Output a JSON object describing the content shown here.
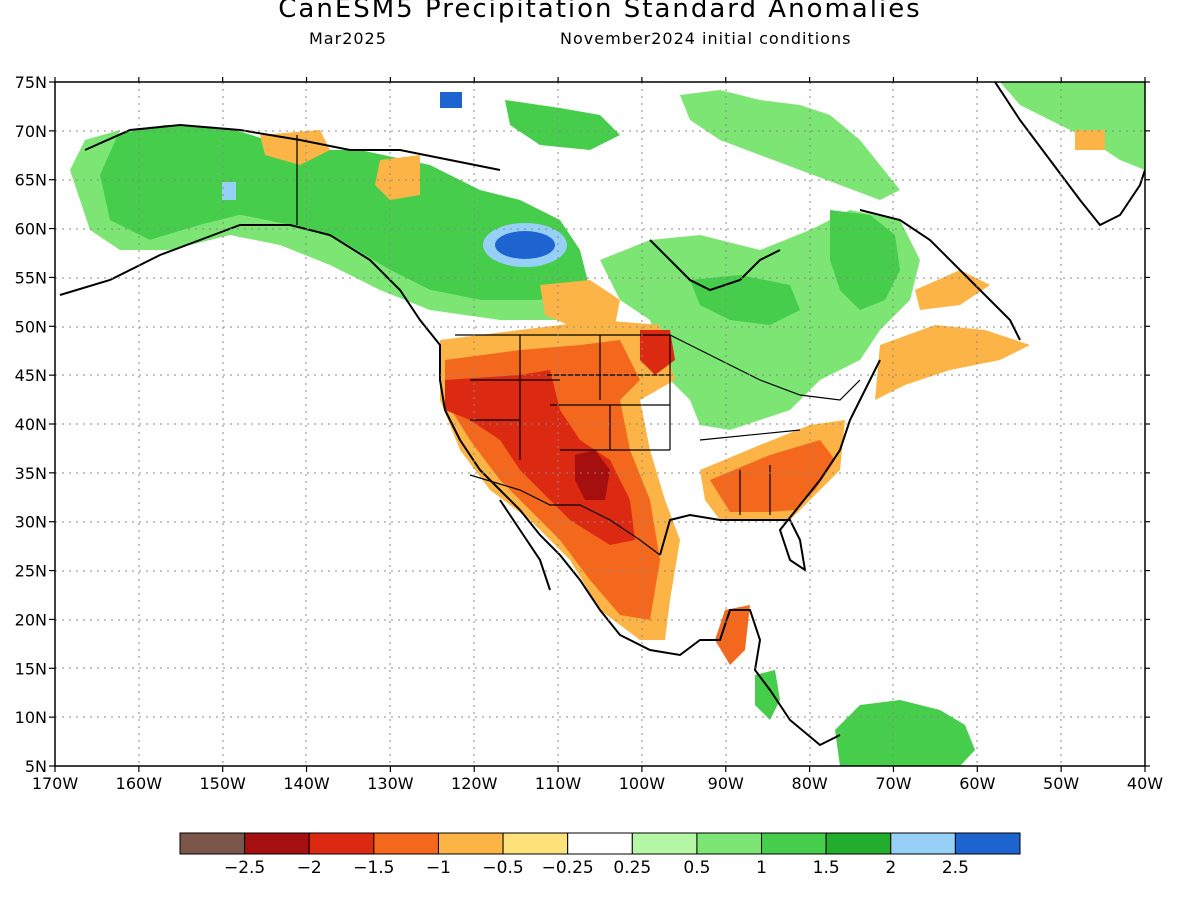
{
  "title": "CanESM5 Precipitation Standard Anomalies",
  "subtitle_left": "Mar2025",
  "subtitle_right": "November2024 initial conditions",
  "map": {
    "lon_range": [
      -170,
      -40
    ],
    "lat_range": [
      5,
      75
    ],
    "lon_ticks": [
      "170W",
      "160W",
      "150W",
      "140W",
      "130W",
      "120W",
      "110W",
      "100W",
      "90W",
      "80W",
      "70W",
      "60W",
      "50W",
      "40W"
    ],
    "lat_ticks": [
      "75N",
      "70N",
      "65N",
      "60N",
      "55N",
      "50N",
      "45N",
      "40N",
      "35N",
      "30N",
      "25N",
      "20N",
      "15N",
      "10N",
      "5N"
    ],
    "gridlines": true
  },
  "colorbar": {
    "colors": [
      "#7a574a",
      "#a50f0f",
      "#dc2a12",
      "#f4681e",
      "#fbb445",
      "#fde17a",
      "#ffffff",
      "#b6f7a6",
      "#7ce573",
      "#45cd4b",
      "#22ad2c",
      "#96d0f6",
      "#1e64d0"
    ],
    "labels": [
      "−2.5",
      "−2",
      "−1.5",
      "−1",
      "−0.5",
      "−0.25",
      "0.25",
      "0.5",
      "1",
      "1.5",
      "2",
      "2.5"
    ]
  }
}
